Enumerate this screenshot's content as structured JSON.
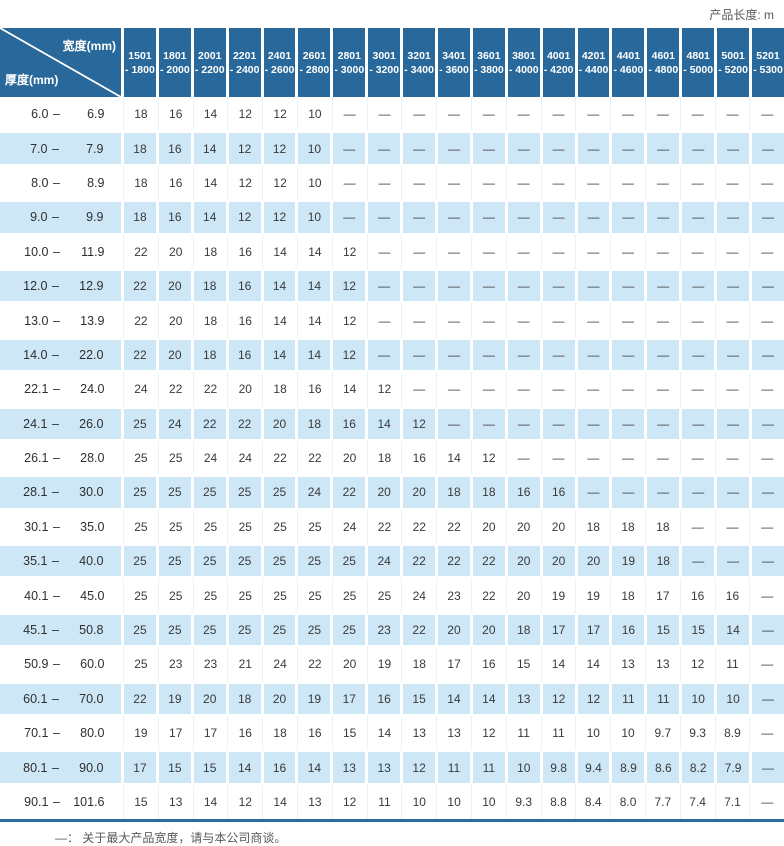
{
  "page": {
    "unit_label": "产品长度: m",
    "footnote": "—： 关于最大产品宽度，请与本公司商谈。"
  },
  "colors": {
    "header_bg": "#28689a",
    "row_alt": "#cde7f7",
    "bottom_line": "#2c6da1"
  },
  "table": {
    "corner_top_right": "宽度(mm)",
    "corner_bottom_left": "厚度(mm)",
    "range_dash": "–",
    "columns": [
      [
        "1501",
        "- 1800"
      ],
      [
        "1801",
        "- 2000"
      ],
      [
        "2001",
        "- 2200"
      ],
      [
        "2201",
        "- 2400"
      ],
      [
        "2401",
        "- 2600"
      ],
      [
        "2601",
        "- 2800"
      ],
      [
        "2801",
        "- 3000"
      ],
      [
        "3001",
        "- 3200"
      ],
      [
        "3201",
        "- 3400"
      ],
      [
        "3401",
        "- 3600"
      ],
      [
        "3601",
        "- 3800"
      ],
      [
        "3801",
        "- 4000"
      ],
      [
        "4001",
        "- 4200"
      ],
      [
        "4201",
        "- 4400"
      ],
      [
        "4401",
        "- 4600"
      ],
      [
        "4601",
        "- 4800"
      ],
      [
        "4801",
        "- 5000"
      ],
      [
        "5001",
        "- 5200"
      ],
      [
        "5201",
        "- 5300"
      ]
    ],
    "rows": [
      {
        "min": "6.0",
        "max": "6.9",
        "values": [
          "18",
          "16",
          "14",
          "12",
          "12",
          "10",
          "—",
          "—",
          "—",
          "—",
          "—",
          "—",
          "—",
          "—",
          "—",
          "—",
          "—",
          "—",
          "—"
        ]
      },
      {
        "min": "7.0",
        "max": "7.9",
        "values": [
          "18",
          "16",
          "14",
          "12",
          "12",
          "10",
          "—",
          "—",
          "—",
          "—",
          "—",
          "—",
          "—",
          "—",
          "—",
          "—",
          "—",
          "—",
          "—"
        ]
      },
      {
        "min": "8.0",
        "max": "8.9",
        "values": [
          "18",
          "16",
          "14",
          "12",
          "12",
          "10",
          "—",
          "—",
          "—",
          "—",
          "—",
          "—",
          "—",
          "—",
          "—",
          "—",
          "—",
          "—",
          "—"
        ]
      },
      {
        "min": "9.0",
        "max": "9.9",
        "values": [
          "18",
          "16",
          "14",
          "12",
          "12",
          "10",
          "—",
          "—",
          "—",
          "—",
          "—",
          "—",
          "—",
          "—",
          "—",
          "—",
          "—",
          "—",
          "—"
        ]
      },
      {
        "min": "10.0",
        "max": "11.9",
        "values": [
          "22",
          "20",
          "18",
          "16",
          "14",
          "14",
          "12",
          "—",
          "—",
          "—",
          "—",
          "—",
          "—",
          "—",
          "—",
          "—",
          "—",
          "—",
          "—"
        ]
      },
      {
        "min": "12.0",
        "max": "12.9",
        "values": [
          "22",
          "20",
          "18",
          "16",
          "14",
          "14",
          "12",
          "—",
          "—",
          "—",
          "—",
          "—",
          "—",
          "—",
          "—",
          "—",
          "—",
          "—",
          "—"
        ]
      },
      {
        "min": "13.0",
        "max": "13.9",
        "values": [
          "22",
          "20",
          "18",
          "16",
          "14",
          "14",
          "12",
          "—",
          "—",
          "—",
          "—",
          "—",
          "—",
          "—",
          "—",
          "—",
          "—",
          "—",
          "—"
        ]
      },
      {
        "min": "14.0",
        "max": "22.0",
        "values": [
          "22",
          "20",
          "18",
          "16",
          "14",
          "14",
          "12",
          "—",
          "—",
          "—",
          "—",
          "—",
          "—",
          "—",
          "—",
          "—",
          "—",
          "—",
          "—"
        ]
      },
      {
        "min": "22.1",
        "max": "24.0",
        "values": [
          "24",
          "22",
          "22",
          "20",
          "18",
          "16",
          "14",
          "12",
          "—",
          "—",
          "—",
          "—",
          "—",
          "—",
          "—",
          "—",
          "—",
          "—",
          "—"
        ]
      },
      {
        "min": "24.1",
        "max": "26.0",
        "values": [
          "25",
          "24",
          "22",
          "22",
          "20",
          "18",
          "16",
          "14",
          "12",
          "—",
          "—",
          "—",
          "—",
          "—",
          "—",
          "—",
          "—",
          "—",
          "—"
        ]
      },
      {
        "min": "26.1",
        "max": "28.0",
        "values": [
          "25",
          "25",
          "24",
          "24",
          "22",
          "22",
          "20",
          "18",
          "16",
          "14",
          "12",
          "—",
          "—",
          "—",
          "—",
          "—",
          "—",
          "—",
          "—"
        ]
      },
      {
        "min": "28.1",
        "max": "30.0",
        "values": [
          "25",
          "25",
          "25",
          "25",
          "25",
          "24",
          "22",
          "20",
          "20",
          "18",
          "18",
          "16",
          "16",
          "—",
          "—",
          "—",
          "—",
          "—",
          "—"
        ]
      },
      {
        "min": "30.1",
        "max": "35.0",
        "values": [
          "25",
          "25",
          "25",
          "25",
          "25",
          "25",
          "24",
          "22",
          "22",
          "22",
          "20",
          "20",
          "20",
          "18",
          "18",
          "18",
          "—",
          "—",
          "—"
        ]
      },
      {
        "min": "35.1",
        "max": "40.0",
        "values": [
          "25",
          "25",
          "25",
          "25",
          "25",
          "25",
          "25",
          "24",
          "22",
          "22",
          "22",
          "20",
          "20",
          "20",
          "19",
          "18",
          "—",
          "—",
          "—"
        ]
      },
      {
        "min": "40.1",
        "max": "45.0",
        "values": [
          "25",
          "25",
          "25",
          "25",
          "25",
          "25",
          "25",
          "25",
          "24",
          "23",
          "22",
          "20",
          "19",
          "19",
          "18",
          "17",
          "16",
          "16",
          "—"
        ]
      },
      {
        "min": "45.1",
        "max": "50.8",
        "values": [
          "25",
          "25",
          "25",
          "25",
          "25",
          "25",
          "25",
          "23",
          "22",
          "20",
          "20",
          "18",
          "17",
          "17",
          "16",
          "15",
          "15",
          "14",
          "—"
        ]
      },
      {
        "min": "50.9",
        "max": "60.0",
        "values": [
          "25",
          "23",
          "23",
          "21",
          "24",
          "22",
          "20",
          "19",
          "18",
          "17",
          "16",
          "15",
          "14",
          "14",
          "13",
          "13",
          "12",
          "11",
          "—"
        ]
      },
      {
        "min": "60.1",
        "max": "70.0",
        "values": [
          "22",
          "19",
          "20",
          "18",
          "20",
          "19",
          "17",
          "16",
          "15",
          "14",
          "14",
          "13",
          "12",
          "12",
          "11",
          "11",
          "10",
          "10",
          "—"
        ]
      },
      {
        "min": "70.1",
        "max": "80.0",
        "values": [
          "19",
          "17",
          "17",
          "16",
          "18",
          "16",
          "15",
          "14",
          "13",
          "13",
          "12",
          "11",
          "11",
          "10",
          "10",
          "9.7",
          "9.3",
          "8.9",
          "—"
        ]
      },
      {
        "min": "80.1",
        "max": "90.0",
        "values": [
          "17",
          "15",
          "15",
          "14",
          "16",
          "14",
          "13",
          "13",
          "12",
          "11",
          "11",
          "10",
          "9.8",
          "9.4",
          "8.9",
          "8.6",
          "8.2",
          "7.9",
          "—"
        ]
      },
      {
        "min": "90.1",
        "max": "101.6",
        "values": [
          "15",
          "13",
          "14",
          "12",
          "14",
          "13",
          "12",
          "11",
          "10",
          "10",
          "10",
          "9.3",
          "8.8",
          "8.4",
          "8.0",
          "7.7",
          "7.4",
          "7.1",
          "—"
        ]
      }
    ]
  }
}
